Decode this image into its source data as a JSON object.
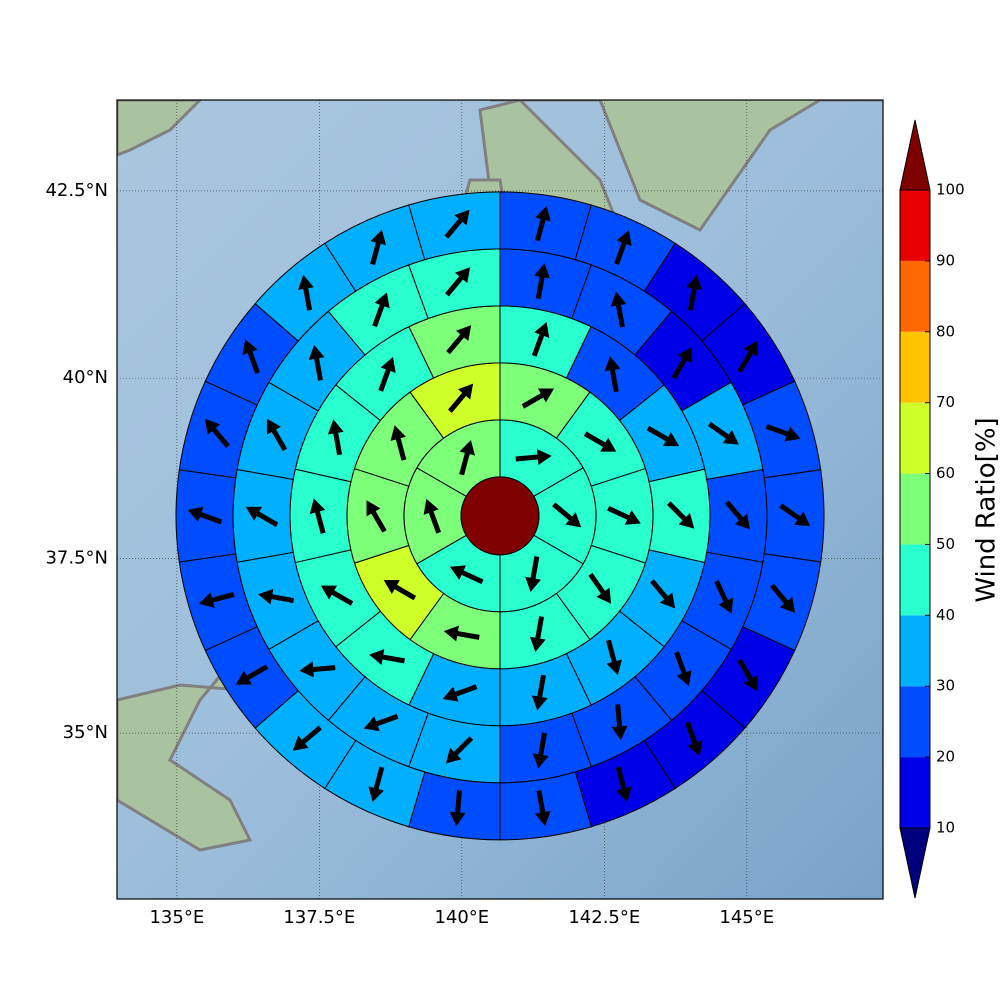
{
  "chart_data": {
    "type": "polar-sector-map",
    "xlim": [
      133.95,
      147.39
    ],
    "ylim": [
      32.55,
      43.68
    ],
    "xticks": [
      {
        "value": 135,
        "label": "135°E"
      },
      {
        "value": 137.5,
        "label": "137.5°E"
      },
      {
        "value": 140,
        "label": "140°E"
      },
      {
        "value": 142.5,
        "label": "142.5°E"
      },
      {
        "value": 145,
        "label": "145°E"
      }
    ],
    "yticks": [
      {
        "value": 35,
        "label": "35°N"
      },
      {
        "value": 37.5,
        "label": "37.5°N"
      },
      {
        "value": 40,
        "label": "40°N"
      },
      {
        "value": 42.5,
        "label": "42.5°N"
      }
    ],
    "grid": true,
    "center": {
      "lon": 140.67,
      "lat": 38.1,
      "value": 105
    },
    "rings": [
      {
        "values": [
          45,
          45,
          45,
          45,
          55,
          55
        ],
        "directions": [
          85,
          130,
          190,
          295,
          340,
          15
        ]
      },
      {
        "values": [
          55,
          45,
          45,
          45,
          45,
          55,
          65,
          55,
          55,
          65
        ],
        "directions": [
          60,
          120,
          115,
          145,
          190,
          280,
          300,
          330,
          345,
          40
        ]
      },
      {
        "values": [
          45,
          25,
          35,
          45,
          35,
          35,
          35,
          35,
          45,
          45,
          45,
          45,
          45,
          55
        ],
        "directions": [
          20,
          350,
          120,
          135,
          140,
          165,
          190,
          250,
          280,
          300,
          345,
          350,
          20,
          40
        ]
      },
      {
        "values": [
          25,
          25,
          15,
          35,
          25,
          25,
          25,
          25,
          25,
          35,
          35,
          35,
          35,
          35,
          35,
          35,
          45,
          45
        ],
        "directions": [
          10,
          350,
          30,
          125,
          140,
          155,
          160,
          175,
          190,
          225,
          250,
          265,
          280,
          300,
          330,
          350,
          20,
          40
        ]
      },
      {
        "values": [
          25,
          25,
          15,
          15,
          25,
          25,
          25,
          15,
          15,
          15,
          25,
          25,
          35,
          35,
          25,
          25,
          25,
          25,
          25,
          35,
          35,
          35
        ],
        "directions": [
          15,
          20,
          10,
          30,
          110,
          125,
          140,
          150,
          160,
          165,
          170,
          185,
          195,
          230,
          240,
          255,
          290,
          320,
          340,
          350,
          15,
          40
        ]
      }
    ],
    "colorbar": {
      "label": "Wind Ratio[%]",
      "ticks": [
        10,
        20,
        30,
        40,
        50,
        60,
        70,
        80,
        90,
        100
      ],
      "colors": [
        "#0000e8",
        "#004cff",
        "#00b0ff",
        "#29ffce",
        "#7dff7a",
        "#ceff29",
        "#ffc400",
        "#ff6800",
        "#e80000"
      ],
      "under_color": "#00007f",
      "over_color": "#7f0000"
    }
  }
}
